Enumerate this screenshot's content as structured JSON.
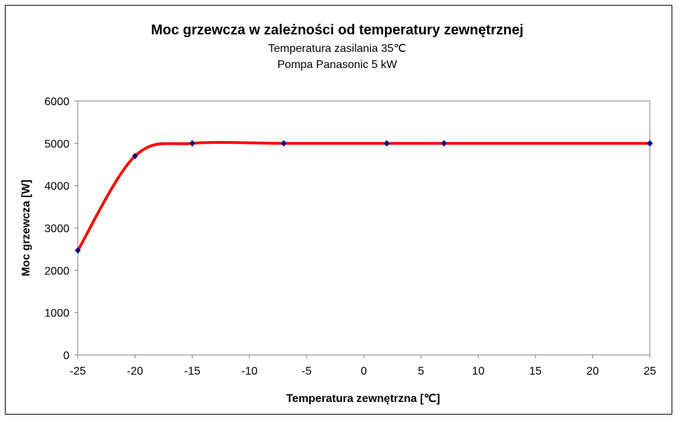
{
  "chart_data": {
    "type": "line",
    "title": "Moc grzewcza w zależności od temperatury zewnętrznej",
    "subtitle": [
      "Temperatura zasilania 35℃",
      "Pompa Panasonic 5 kW"
    ],
    "xlabel": "Temperatura zewnętrzna [℃]",
    "ylabel": "Moc grzewcza [W]",
    "xlim": [
      -25,
      25
    ],
    "ylim": [
      0,
      6000
    ],
    "xticks": [
      -25,
      -20,
      -15,
      -10,
      -5,
      0,
      5,
      10,
      15,
      20,
      25
    ],
    "yticks": [
      0,
      1000,
      2000,
      3000,
      4000,
      5000,
      6000
    ],
    "grid": false,
    "smoothed": true,
    "series": [
      {
        "x": [
          -25,
          -20,
          -15,
          -7,
          2,
          7,
          25
        ],
        "y": [
          2470,
          4700,
          5000,
          5000,
          5000,
          5000,
          5000
        ],
        "line_color": "#ff0000",
        "marker_color": "#000080",
        "marker": "diamond"
      }
    ]
  }
}
